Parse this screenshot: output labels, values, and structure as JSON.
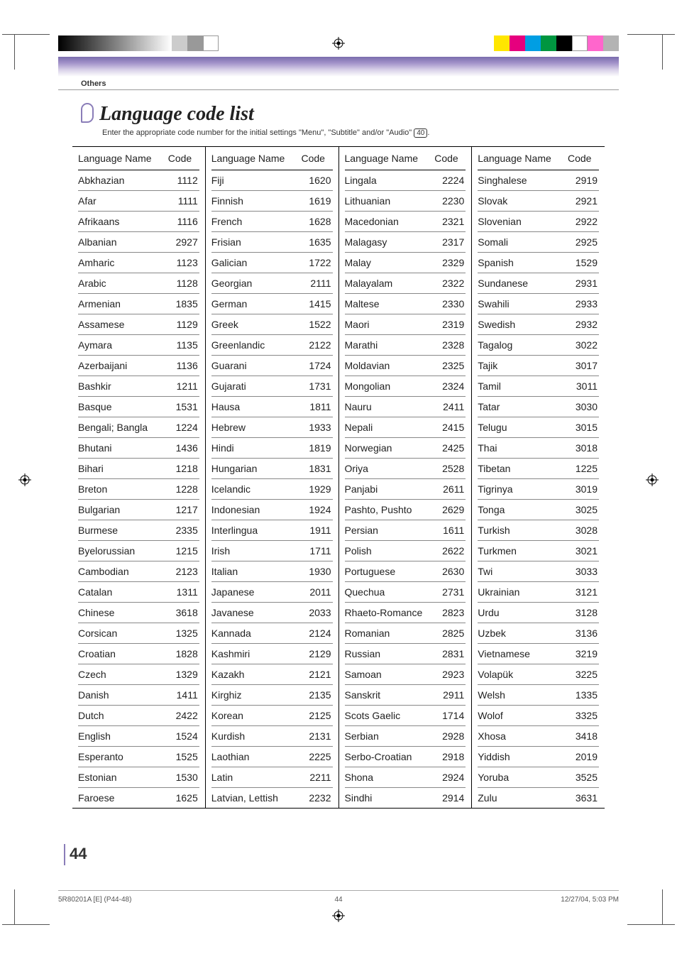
{
  "section_label": "Others",
  "title": "Language code list",
  "subtitle_pre": "Enter the appropriate code number for the initial settings \"Menu\", \"Subtitle\" and/or \"Audio\" ",
  "subtitle_ref": "40",
  "subtitle_post": ".",
  "column_header_name": "Language Name",
  "column_header_code": "Code",
  "page_number": "44",
  "footer_left": "5R80201A [E] (P44-48)",
  "footer_mid": "44",
  "footer_right": "12/27/04, 5:03 PM",
  "columns": [
    [
      {
        "name": "Abkhazian",
        "code": "1112"
      },
      {
        "name": "Afar",
        "code": "1111"
      },
      {
        "name": "Afrikaans",
        "code": "1116"
      },
      {
        "name": "Albanian",
        "code": "2927"
      },
      {
        "name": "Amharic",
        "code": "1123"
      },
      {
        "name": "Arabic",
        "code": "1128"
      },
      {
        "name": "Armenian",
        "code": "1835"
      },
      {
        "name": "Assamese",
        "code": "1129"
      },
      {
        "name": "Aymara",
        "code": "1135"
      },
      {
        "name": "Azerbaijani",
        "code": "1136"
      },
      {
        "name": "Bashkir",
        "code": "1211"
      },
      {
        "name": "Basque",
        "code": "1531"
      },
      {
        "name": "Bengali; Bangla",
        "code": "1224"
      },
      {
        "name": "Bhutani",
        "code": "1436"
      },
      {
        "name": "Bihari",
        "code": "1218"
      },
      {
        "name": "Breton",
        "code": "1228"
      },
      {
        "name": "Bulgarian",
        "code": "1217"
      },
      {
        "name": "Burmese",
        "code": "2335"
      },
      {
        "name": "Byelorussian",
        "code": "1215"
      },
      {
        "name": "Cambodian",
        "code": "2123"
      },
      {
        "name": "Catalan",
        "code": "1311"
      },
      {
        "name": "Chinese",
        "code": "3618"
      },
      {
        "name": "Corsican",
        "code": "1325"
      },
      {
        "name": "Croatian",
        "code": "1828"
      },
      {
        "name": "Czech",
        "code": "1329"
      },
      {
        "name": "Danish",
        "code": "1411"
      },
      {
        "name": "Dutch",
        "code": "2422"
      },
      {
        "name": "English",
        "code": "1524"
      },
      {
        "name": "Esperanto",
        "code": "1525"
      },
      {
        "name": "Estonian",
        "code": "1530"
      },
      {
        "name": "Faroese",
        "code": "1625"
      }
    ],
    [
      {
        "name": "Fiji",
        "code": "1620"
      },
      {
        "name": "Finnish",
        "code": "1619"
      },
      {
        "name": "French",
        "code": "1628"
      },
      {
        "name": "Frisian",
        "code": "1635"
      },
      {
        "name": "Galician",
        "code": "1722"
      },
      {
        "name": "Georgian",
        "code": "2111"
      },
      {
        "name": "German",
        "code": "1415"
      },
      {
        "name": "Greek",
        "code": "1522"
      },
      {
        "name": "Greenlandic",
        "code": "2122"
      },
      {
        "name": "Guarani",
        "code": "1724"
      },
      {
        "name": "Gujarati",
        "code": "1731"
      },
      {
        "name": "Hausa",
        "code": "1811"
      },
      {
        "name": "Hebrew",
        "code": "1933"
      },
      {
        "name": "Hindi",
        "code": "1819"
      },
      {
        "name": "Hungarian",
        "code": "1831"
      },
      {
        "name": "Icelandic",
        "code": "1929"
      },
      {
        "name": "Indonesian",
        "code": "1924"
      },
      {
        "name": "Interlingua",
        "code": "1911"
      },
      {
        "name": "Irish",
        "code": "1711"
      },
      {
        "name": "Italian",
        "code": "1930"
      },
      {
        "name": "Japanese",
        "code": "2011"
      },
      {
        "name": "Javanese",
        "code": "2033"
      },
      {
        "name": "Kannada",
        "code": "2124"
      },
      {
        "name": "Kashmiri",
        "code": "2129"
      },
      {
        "name": "Kazakh",
        "code": "2121"
      },
      {
        "name": "Kirghiz",
        "code": "2135"
      },
      {
        "name": "Korean",
        "code": "2125"
      },
      {
        "name": "Kurdish",
        "code": "2131"
      },
      {
        "name": "Laothian",
        "code": "2225"
      },
      {
        "name": "Latin",
        "code": "2211"
      },
      {
        "name": "Latvian, Lettish",
        "code": "2232"
      }
    ],
    [
      {
        "name": "Lingala",
        "code": "2224"
      },
      {
        "name": "Lithuanian",
        "code": "2230"
      },
      {
        "name": "Macedonian",
        "code": "2321"
      },
      {
        "name": "Malagasy",
        "code": "2317"
      },
      {
        "name": "Malay",
        "code": "2329"
      },
      {
        "name": "Malayalam",
        "code": "2322"
      },
      {
        "name": "Maltese",
        "code": "2330"
      },
      {
        "name": "Maori",
        "code": "2319"
      },
      {
        "name": "Marathi",
        "code": "2328"
      },
      {
        "name": "Moldavian",
        "code": "2325"
      },
      {
        "name": "Mongolian",
        "code": "2324"
      },
      {
        "name": "Nauru",
        "code": "2411"
      },
      {
        "name": "Nepali",
        "code": "2415"
      },
      {
        "name": "Norwegian",
        "code": "2425"
      },
      {
        "name": "Oriya",
        "code": "2528"
      },
      {
        "name": "Panjabi",
        "code": "2611"
      },
      {
        "name": "Pashto, Pushto",
        "code": "2629"
      },
      {
        "name": "Persian",
        "code": "1611"
      },
      {
        "name": "Polish",
        "code": "2622"
      },
      {
        "name": "Portuguese",
        "code": "2630"
      },
      {
        "name": "Quechua",
        "code": "2731"
      },
      {
        "name": "Rhaeto-Romance",
        "code": "2823"
      },
      {
        "name": "Romanian",
        "code": "2825"
      },
      {
        "name": "Russian",
        "code": "2831"
      },
      {
        "name": "Samoan",
        "code": "2923"
      },
      {
        "name": "Sanskrit",
        "code": "2911"
      },
      {
        "name": "Scots Gaelic",
        "code": "1714"
      },
      {
        "name": "Serbian",
        "code": "2928"
      },
      {
        "name": "Serbo-Croatian",
        "code": "2918"
      },
      {
        "name": "Shona",
        "code": "2924"
      },
      {
        "name": "Sindhi",
        "code": "2914"
      }
    ],
    [
      {
        "name": "Singhalese",
        "code": "2919"
      },
      {
        "name": "Slovak",
        "code": "2921"
      },
      {
        "name": "Slovenian",
        "code": "2922"
      },
      {
        "name": "Somali",
        "code": "2925"
      },
      {
        "name": "Spanish",
        "code": "1529"
      },
      {
        "name": "Sundanese",
        "code": "2931"
      },
      {
        "name": "Swahili",
        "code": "2933"
      },
      {
        "name": "Swedish",
        "code": "2932"
      },
      {
        "name": "Tagalog",
        "code": "3022"
      },
      {
        "name": "Tajik",
        "code": "3017"
      },
      {
        "name": "Tamil",
        "code": "3011"
      },
      {
        "name": "Tatar",
        "code": "3030"
      },
      {
        "name": "Telugu",
        "code": "3015"
      },
      {
        "name": "Thai",
        "code": "3018"
      },
      {
        "name": "Tibetan",
        "code": "1225"
      },
      {
        "name": "Tigrinya",
        "code": "3019"
      },
      {
        "name": "Tonga",
        "code": "3025"
      },
      {
        "name": "Turkish",
        "code": "3028"
      },
      {
        "name": "Turkmen",
        "code": "3021"
      },
      {
        "name": "Twi",
        "code": "3033"
      },
      {
        "name": "Ukrainian",
        "code": "3121"
      },
      {
        "name": "Urdu",
        "code": "3128"
      },
      {
        "name": "Uzbek",
        "code": "3136"
      },
      {
        "name": "Vietnamese",
        "code": "3219"
      },
      {
        "name": "Volapük",
        "code": "3225"
      },
      {
        "name": "Welsh",
        "code": "1335"
      },
      {
        "name": "Wolof",
        "code": "3325"
      },
      {
        "name": "Xhosa",
        "code": "3418"
      },
      {
        "name": "Yiddish",
        "code": "2019"
      },
      {
        "name": "Yoruba",
        "code": "3525"
      },
      {
        "name": "Zulu",
        "code": "3631"
      }
    ]
  ],
  "color_bar_right": [
    "#ffe600",
    "#e6007e",
    "#009ee3",
    "#009640",
    "#000000",
    "#ffffff",
    "#ff66cc",
    "#b3b3b3"
  ]
}
